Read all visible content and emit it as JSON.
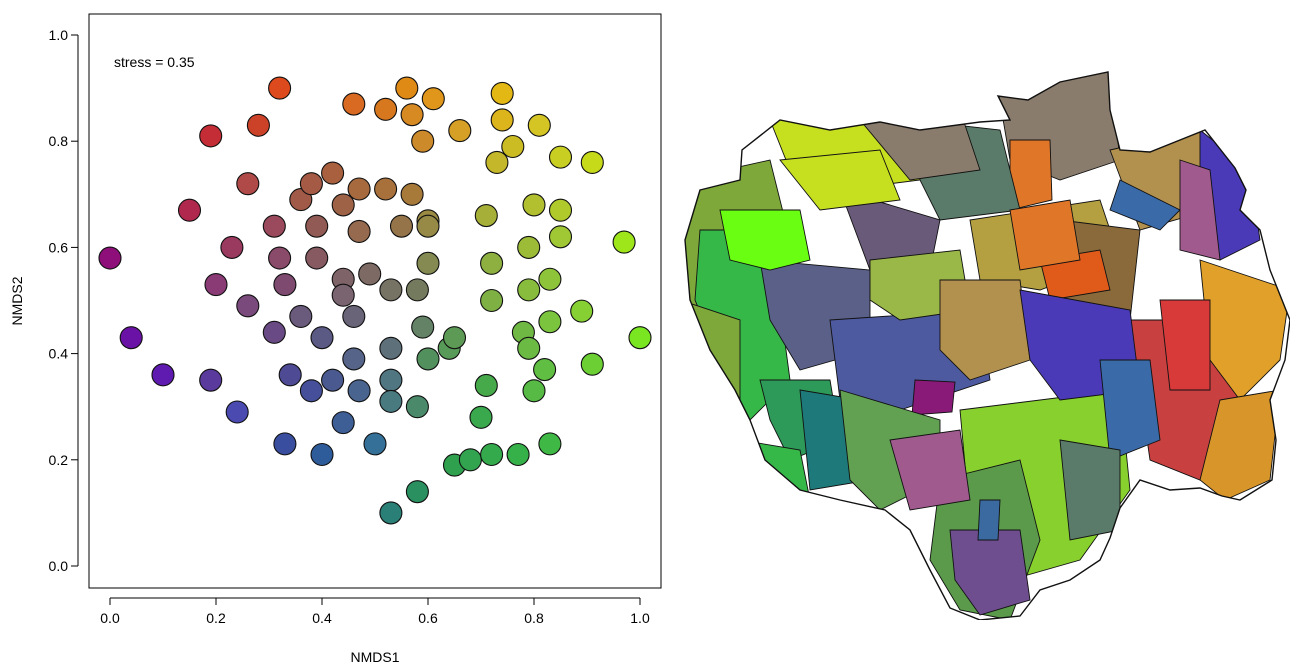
{
  "chart_data": {
    "type": "scatter",
    "xlabel": "NMDS1",
    "ylabel": "NMDS2",
    "annotation": "stress = 0.35",
    "xlim": [
      0.0,
      1.0
    ],
    "ylim": [
      0.0,
      1.0
    ],
    "xticks": [
      "0.0",
      "0.2",
      "0.4",
      "0.6",
      "0.8",
      "1.0"
    ],
    "yticks": [
      "0.0",
      "0.2",
      "0.4",
      "0.6",
      "0.8",
      "1.0"
    ],
    "grid": false,
    "points": [
      {
        "x": 0.0,
        "y": 0.58,
        "color": "#8e0f7a"
      },
      {
        "x": 0.04,
        "y": 0.43,
        "color": "#6b12a6"
      },
      {
        "x": 0.1,
        "y": 0.36,
        "color": "#5f1ab0"
      },
      {
        "x": 0.15,
        "y": 0.67,
        "color": "#b0284e"
      },
      {
        "x": 0.19,
        "y": 0.81,
        "color": "#c42c36"
      },
      {
        "x": 0.19,
        "y": 0.35,
        "color": "#5a3a9c"
      },
      {
        "x": 0.2,
        "y": 0.53,
        "color": "#8a3a74"
      },
      {
        "x": 0.23,
        "y": 0.6,
        "color": "#9a3a5e"
      },
      {
        "x": 0.24,
        "y": 0.29,
        "color": "#4a4ab0"
      },
      {
        "x": 0.26,
        "y": 0.72,
        "color": "#b04a48"
      },
      {
        "x": 0.26,
        "y": 0.49,
        "color": "#7a4a7c"
      },
      {
        "x": 0.28,
        "y": 0.83,
        "color": "#cc4228"
      },
      {
        "x": 0.31,
        "y": 0.64,
        "color": "#9a4a5c"
      },
      {
        "x": 0.31,
        "y": 0.44,
        "color": "#6a4a84"
      },
      {
        "x": 0.32,
        "y": 0.9,
        "color": "#dc4a1e"
      },
      {
        "x": 0.32,
        "y": 0.58,
        "color": "#8a4a6a"
      },
      {
        "x": 0.33,
        "y": 0.53,
        "color": "#7e4a70"
      },
      {
        "x": 0.33,
        "y": 0.23,
        "color": "#3a4ea0"
      },
      {
        "x": 0.34,
        "y": 0.36,
        "color": "#4e4a94"
      },
      {
        "x": 0.36,
        "y": 0.69,
        "color": "#a25a48"
      },
      {
        "x": 0.36,
        "y": 0.47,
        "color": "#6a5a7c"
      },
      {
        "x": 0.38,
        "y": 0.72,
        "color": "#a45a44"
      },
      {
        "x": 0.38,
        "y": 0.33,
        "color": "#46509a"
      },
      {
        "x": 0.39,
        "y": 0.64,
        "color": "#925a54"
      },
      {
        "x": 0.39,
        "y": 0.58,
        "color": "#865a60"
      },
      {
        "x": 0.4,
        "y": 0.43,
        "color": "#5a5a84"
      },
      {
        "x": 0.4,
        "y": 0.21,
        "color": "#2e5c9a"
      },
      {
        "x": 0.42,
        "y": 0.74,
        "color": "#a8603e"
      },
      {
        "x": 0.42,
        "y": 0.35,
        "color": "#4a5a90"
      },
      {
        "x": 0.44,
        "y": 0.68,
        "color": "#9e6246"
      },
      {
        "x": 0.44,
        "y": 0.54,
        "color": "#7e6468"
      },
      {
        "x": 0.44,
        "y": 0.51,
        "color": "#7a6470"
      },
      {
        "x": 0.44,
        "y": 0.27,
        "color": "#3e5e96"
      },
      {
        "x": 0.46,
        "y": 0.87,
        "color": "#d86a22"
      },
      {
        "x": 0.46,
        "y": 0.47,
        "color": "#6a6478"
      },
      {
        "x": 0.46,
        "y": 0.39,
        "color": "#56648a"
      },
      {
        "x": 0.47,
        "y": 0.71,
        "color": "#a66a3e"
      },
      {
        "x": 0.47,
        "y": 0.63,
        "color": "#966a4e"
      },
      {
        "x": 0.47,
        "y": 0.33,
        "color": "#4a6490"
      },
      {
        "x": 0.49,
        "y": 0.55,
        "color": "#7e6a64"
      },
      {
        "x": 0.5,
        "y": 0.23,
        "color": "#347098"
      },
      {
        "x": 0.52,
        "y": 0.86,
        "color": "#d8781e"
      },
      {
        "x": 0.52,
        "y": 0.71,
        "color": "#a8703a"
      },
      {
        "x": 0.53,
        "y": 0.1,
        "color": "#2a8076"
      },
      {
        "x": 0.53,
        "y": 0.52,
        "color": "#767264"
      },
      {
        "x": 0.53,
        "y": 0.41,
        "color": "#5e707a"
      },
      {
        "x": 0.53,
        "y": 0.35,
        "color": "#507682"
      },
      {
        "x": 0.53,
        "y": 0.31,
        "color": "#487a80"
      },
      {
        "x": 0.55,
        "y": 0.64,
        "color": "#947448"
      },
      {
        "x": 0.56,
        "y": 0.9,
        "color": "#e08a16"
      },
      {
        "x": 0.57,
        "y": 0.85,
        "color": "#d88a22"
      },
      {
        "x": 0.57,
        "y": 0.7,
        "color": "#a87a3a"
      },
      {
        "x": 0.58,
        "y": 0.14,
        "color": "#2a9060"
      },
      {
        "x": 0.58,
        "y": 0.3,
        "color": "#4a8a6a"
      },
      {
        "x": 0.58,
        "y": 0.52,
        "color": "#747a5e"
      },
      {
        "x": 0.59,
        "y": 0.8,
        "color": "#cc8a2a"
      },
      {
        "x": 0.59,
        "y": 0.45,
        "color": "#648266"
      },
      {
        "x": 0.6,
        "y": 0.65,
        "color": "#9a8a42"
      },
      {
        "x": 0.6,
        "y": 0.64,
        "color": "#968a46"
      },
      {
        "x": 0.6,
        "y": 0.57,
        "color": "#848a52"
      },
      {
        "x": 0.6,
        "y": 0.39,
        "color": "#52905e"
      },
      {
        "x": 0.61,
        "y": 0.88,
        "color": "#e0961a"
      },
      {
        "x": 0.64,
        "y": 0.41,
        "color": "#589a58"
      },
      {
        "x": 0.65,
        "y": 0.43,
        "color": "#5c9a56"
      },
      {
        "x": 0.65,
        "y": 0.19,
        "color": "#2ea04e"
      },
      {
        "x": 0.66,
        "y": 0.82,
        "color": "#d6a026"
      },
      {
        "x": 0.68,
        "y": 0.2,
        "color": "#32a450"
      },
      {
        "x": 0.7,
        "y": 0.28,
        "color": "#3aa84c"
      },
      {
        "x": 0.71,
        "y": 0.34,
        "color": "#46aa4a"
      },
      {
        "x": 0.71,
        "y": 0.66,
        "color": "#a6b038"
      },
      {
        "x": 0.72,
        "y": 0.57,
        "color": "#8eb040"
      },
      {
        "x": 0.72,
        "y": 0.5,
        "color": "#7eb044"
      },
      {
        "x": 0.72,
        "y": 0.21,
        "color": "#34aa4c"
      },
      {
        "x": 0.73,
        "y": 0.76,
        "color": "#c4b82a"
      },
      {
        "x": 0.74,
        "y": 0.84,
        "color": "#dcb41c"
      },
      {
        "x": 0.74,
        "y": 0.89,
        "color": "#e4b814"
      },
      {
        "x": 0.76,
        "y": 0.79,
        "color": "#ccbc24"
      },
      {
        "x": 0.77,
        "y": 0.21,
        "color": "#36b048"
      },
      {
        "x": 0.78,
        "y": 0.44,
        "color": "#70b844"
      },
      {
        "x": 0.79,
        "y": 0.6,
        "color": "#9cbc38"
      },
      {
        "x": 0.79,
        "y": 0.52,
        "color": "#88bc3c"
      },
      {
        "x": 0.79,
        "y": 0.41,
        "color": "#6aba44"
      },
      {
        "x": 0.8,
        "y": 0.68,
        "color": "#b2c030"
      },
      {
        "x": 0.8,
        "y": 0.33,
        "color": "#56ba44"
      },
      {
        "x": 0.81,
        "y": 0.83,
        "color": "#d4c424"
      },
      {
        "x": 0.82,
        "y": 0.37,
        "color": "#60be42"
      },
      {
        "x": 0.83,
        "y": 0.54,
        "color": "#8ec43a"
      },
      {
        "x": 0.83,
        "y": 0.46,
        "color": "#7ac43e"
      },
      {
        "x": 0.83,
        "y": 0.23,
        "color": "#40b846"
      },
      {
        "x": 0.85,
        "y": 0.77,
        "color": "#c8ce22"
      },
      {
        "x": 0.85,
        "y": 0.67,
        "color": "#b0ca2c"
      },
      {
        "x": 0.85,
        "y": 0.62,
        "color": "#a0c834"
      },
      {
        "x": 0.89,
        "y": 0.48,
        "color": "#86d034"
      },
      {
        "x": 0.91,
        "y": 0.76,
        "color": "#c6da1a"
      },
      {
        "x": 0.91,
        "y": 0.38,
        "color": "#6cd034"
      },
      {
        "x": 0.97,
        "y": 0.61,
        "color": "#9ee61a"
      },
      {
        "x": 1.0,
        "y": 0.43,
        "color": "#7ae622"
      }
    ]
  },
  "map": {
    "background": "#ffffff",
    "outline": "#111111",
    "regions": [
      {
        "color": "#7ea83a"
      },
      {
        "color": "#c6e020"
      },
      {
        "color": "#8a7c6c"
      },
      {
        "color": "#e07628"
      },
      {
        "color": "#b2904e"
      },
      {
        "color": "#4a3ab8"
      },
      {
        "color": "#3a6aa8"
      },
      {
        "color": "#a05a8e"
      },
      {
        "color": "#5a7a6a"
      },
      {
        "color": "#36b848"
      },
      {
        "color": "#5a6088"
      },
      {
        "color": "#6a5a7a"
      },
      {
        "color": "#4e5aa0"
      },
      {
        "color": "#8a1a78"
      },
      {
        "color": "#c84040"
      },
      {
        "color": "#e0a02a"
      },
      {
        "color": "#d8962a"
      },
      {
        "color": "#2e9a5a"
      },
      {
        "color": "#1e7a7a"
      },
      {
        "color": "#62a052"
      },
      {
        "color": "#88d02e"
      },
      {
        "color": "#5a9a4a"
      },
      {
        "color": "#6e4e8e"
      },
      {
        "color": "#3a6aa0"
      },
      {
        "color": "#6aff12"
      },
      {
        "color": "#9ab848"
      },
      {
        "color": "#b4a040"
      },
      {
        "color": "#8a6a3a"
      },
      {
        "color": "#e05a1a"
      },
      {
        "color": "#d83a3a"
      }
    ]
  }
}
